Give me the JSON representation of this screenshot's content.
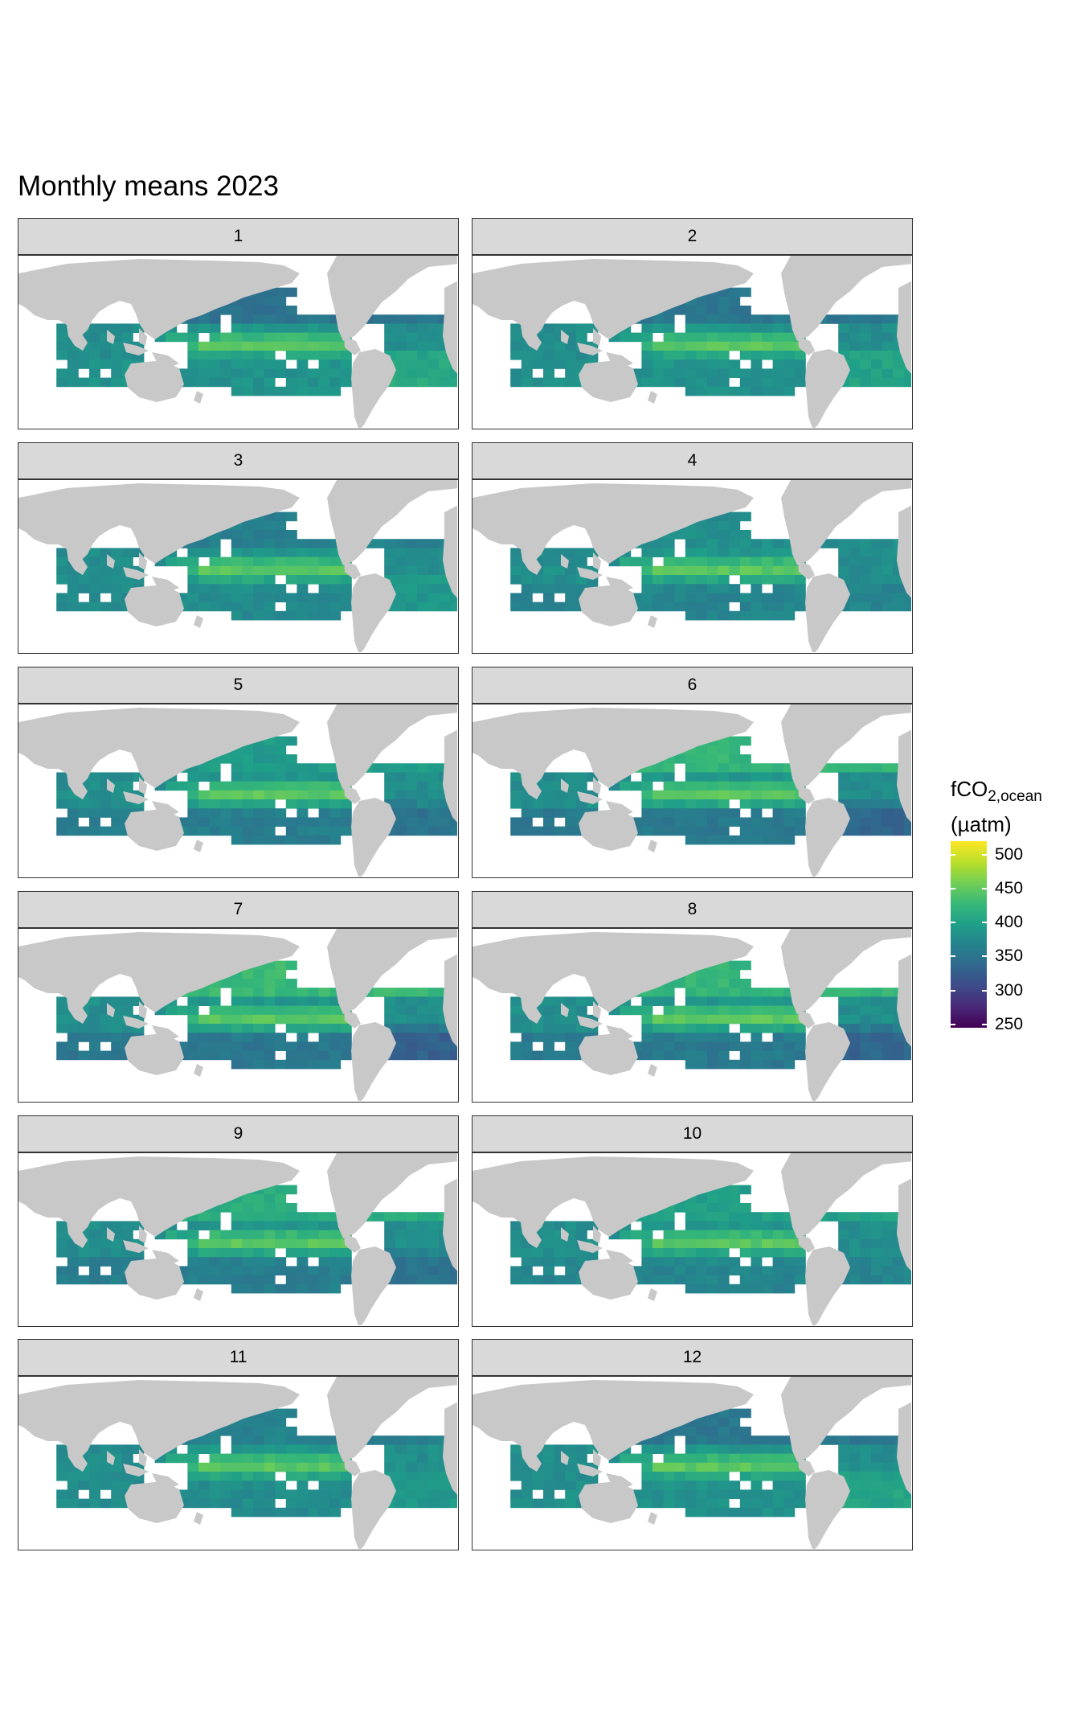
{
  "title": "Monthly means 2023",
  "panels": [
    {
      "label": "1"
    },
    {
      "label": "2"
    },
    {
      "label": "3"
    },
    {
      "label": "4"
    },
    {
      "label": "5"
    },
    {
      "label": "6"
    },
    {
      "label": "7"
    },
    {
      "label": "8"
    },
    {
      "label": "9"
    },
    {
      "label": "10"
    },
    {
      "label": "11"
    },
    {
      "label": "12"
    }
  ],
  "legend": {
    "title_main": "fCO",
    "title_sub": "2,ocean",
    "title_unit": "(µatm)",
    "ticks": [
      "500",
      "450",
      "400",
      "350",
      "300",
      "250"
    ],
    "tick_values": [
      500,
      450,
      400,
      350,
      300,
      250
    ],
    "range": [
      245,
      520
    ],
    "palette": "viridis"
  },
  "colors": {
    "land": "#c8c8c8",
    "strip": "#d9d9d9",
    "missing": "#ffffff"
  }
}
